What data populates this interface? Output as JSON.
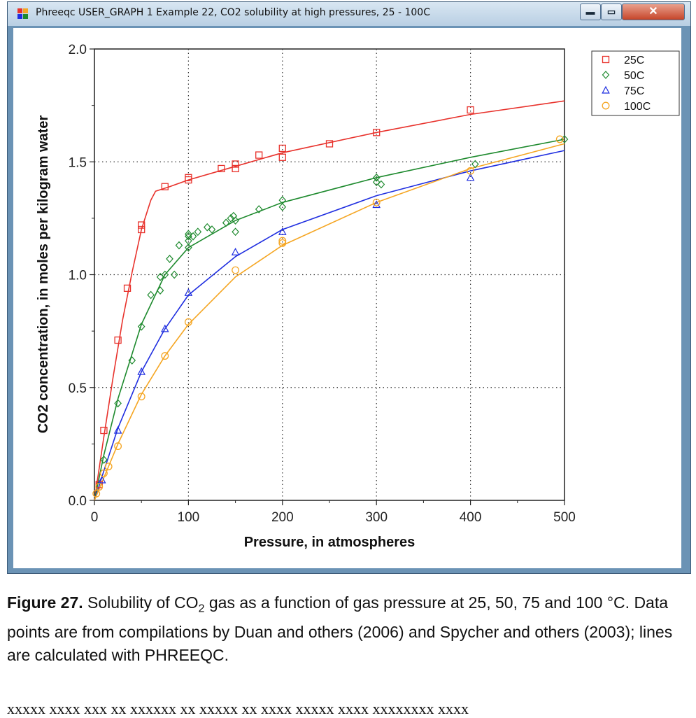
{
  "window": {
    "title": "Phreeqc USER_GRAPH 1 Example 22, CO2 solubility at high pressures, 25 - 100C",
    "buttons": {
      "minimize": "▬",
      "maximize": "▭",
      "close": "✕"
    }
  },
  "chart_data": {
    "type": "scatter",
    "xlabel": "Pressure, in atmospheres",
    "ylabel": "CO2 concentration, in moles per kilogram water",
    "xlim": [
      0,
      500
    ],
    "ylim": [
      0,
      2.0
    ],
    "xticks": [
      0,
      100,
      200,
      300,
      400,
      500
    ],
    "yticks": [
      0.0,
      0.5,
      1.0,
      1.5,
      2.0
    ],
    "xtick_labels": [
      "0",
      "100",
      "200",
      "300",
      "400",
      "500"
    ],
    "ytick_labels": [
      "0.0",
      "0.5",
      "1.0",
      "1.5",
      "2.0"
    ],
    "grid": "dotted",
    "legend_position": "top-right",
    "series": [
      {
        "name": "25C",
        "color": "#e8322c",
        "marker": "square",
        "points": [
          [
            5,
            0.07
          ],
          [
            10,
            0.31
          ],
          [
            25,
            0.71
          ],
          [
            35,
            0.94
          ],
          [
            50,
            1.2
          ],
          [
            50,
            1.22
          ],
          [
            75,
            1.39
          ],
          [
            100,
            1.42
          ],
          [
            100,
            1.43
          ],
          [
            135,
            1.47
          ],
          [
            150,
            1.47
          ],
          [
            150,
            1.49
          ],
          [
            175,
            1.53
          ],
          [
            200,
            1.52
          ],
          [
            200,
            1.56
          ],
          [
            250,
            1.58
          ],
          [
            300,
            1.63
          ],
          [
            400,
            1.73
          ]
        ],
        "line": [
          [
            0,
            0
          ],
          [
            10,
            0.28
          ],
          [
            20,
            0.55
          ],
          [
            30,
            0.8
          ],
          [
            40,
            1.01
          ],
          [
            50,
            1.2
          ],
          [
            60,
            1.33
          ],
          [
            65,
            1.37
          ],
          [
            80,
            1.39
          ],
          [
            100,
            1.42
          ],
          [
            150,
            1.48
          ],
          [
            200,
            1.54
          ],
          [
            300,
            1.63
          ],
          [
            400,
            1.71
          ],
          [
            500,
            1.77
          ]
        ]
      },
      {
        "name": "50C",
        "color": "#1e8a2e",
        "marker": "diamond",
        "points": [
          [
            10,
            0.18
          ],
          [
            25,
            0.43
          ],
          [
            40,
            0.62
          ],
          [
            50,
            0.77
          ],
          [
            60,
            0.91
          ],
          [
            70,
            0.93
          ],
          [
            70,
            0.99
          ],
          [
            75,
            1.0
          ],
          [
            80,
            1.07
          ],
          [
            85,
            1.0
          ],
          [
            90,
            1.13
          ],
          [
            100,
            1.12
          ],
          [
            100,
            1.15
          ],
          [
            100,
            1.17
          ],
          [
            100,
            1.18
          ],
          [
            105,
            1.17
          ],
          [
            110,
            1.19
          ],
          [
            120,
            1.21
          ],
          [
            125,
            1.2
          ],
          [
            140,
            1.23
          ],
          [
            145,
            1.25
          ],
          [
            148,
            1.26
          ],
          [
            150,
            1.19
          ],
          [
            150,
            1.24
          ],
          [
            175,
            1.29
          ],
          [
            200,
            1.3
          ],
          [
            200,
            1.33
          ],
          [
            300,
            1.41
          ],
          [
            300,
            1.43
          ],
          [
            305,
            1.4
          ],
          [
            405,
            1.49
          ],
          [
            500,
            1.6
          ]
        ],
        "line": [
          [
            0,
            0
          ],
          [
            10,
            0.2
          ],
          [
            25,
            0.45
          ],
          [
            50,
            0.78
          ],
          [
            75,
            1.0
          ],
          [
            100,
            1.12
          ],
          [
            150,
            1.24
          ],
          [
            200,
            1.32
          ],
          [
            300,
            1.43
          ],
          [
            400,
            1.52
          ],
          [
            500,
            1.6
          ]
        ]
      },
      {
        "name": "75C",
        "color": "#1f2ee0",
        "marker": "triangle",
        "points": [
          [
            8,
            0.09
          ],
          [
            25,
            0.31
          ],
          [
            50,
            0.57
          ],
          [
            75,
            0.76
          ],
          [
            100,
            0.92
          ],
          [
            150,
            1.1
          ],
          [
            200,
            1.19
          ],
          [
            300,
            1.31
          ],
          [
            400,
            1.43
          ]
        ],
        "line": [
          [
            0,
            0
          ],
          [
            10,
            0.13
          ],
          [
            25,
            0.32
          ],
          [
            50,
            0.57
          ],
          [
            75,
            0.76
          ],
          [
            100,
            0.91
          ],
          [
            150,
            1.08
          ],
          [
            200,
            1.2
          ],
          [
            300,
            1.35
          ],
          [
            400,
            1.46
          ],
          [
            500,
            1.55
          ]
        ]
      },
      {
        "name": "100C",
        "color": "#f5a623",
        "marker": "circle",
        "points": [
          [
            2,
            0.03
          ],
          [
            5,
            0.06
          ],
          [
            10,
            0.12
          ],
          [
            15,
            0.15
          ],
          [
            25,
            0.24
          ],
          [
            50,
            0.46
          ],
          [
            75,
            0.64
          ],
          [
            100,
            0.79
          ],
          [
            150,
            1.02
          ],
          [
            200,
            1.14
          ],
          [
            200,
            1.15
          ],
          [
            300,
            1.32
          ],
          [
            400,
            1.46
          ],
          [
            495,
            1.6
          ]
        ],
        "line": [
          [
            0,
            0
          ],
          [
            10,
            0.1
          ],
          [
            25,
            0.25
          ],
          [
            50,
            0.47
          ],
          [
            75,
            0.64
          ],
          [
            100,
            0.78
          ],
          [
            150,
            0.99
          ],
          [
            200,
            1.13
          ],
          [
            300,
            1.32
          ],
          [
            400,
            1.47
          ],
          [
            500,
            1.58
          ]
        ]
      }
    ]
  },
  "caption": {
    "figure_label": "Figure 27.",
    "text_before_sub": " Solubility of CO",
    "subscript": "2",
    "text_after_sub": " gas as a function of gas pressure at 25, 50, 75 and 100 °C. Data points are from compilations by Duan and others (2006) and Spycher and others (2003); lines are calculated with PHREEQC."
  },
  "body_text": {
    "partial_line": "xxxxx xxxx xxx xx xxxxxx xx xxxxx xx  xxxx xxxxx xxxx xxxxxxxx xxxx"
  }
}
